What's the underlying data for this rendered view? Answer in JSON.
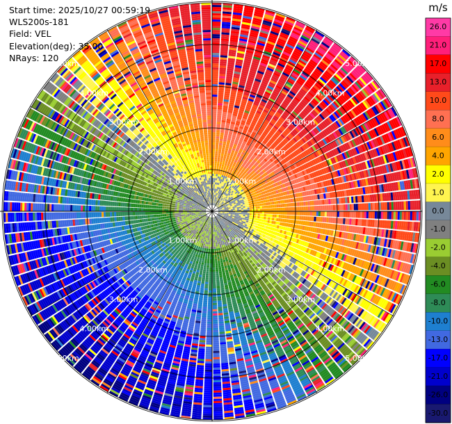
{
  "header": {
    "start_time": "Start time: 2025/10/27 00:59:19",
    "instrument": "WLS200s-181",
    "field": "Field: VEL",
    "elevation": "Elevation(deg): 35.00",
    "nrays": "NRays: 120"
  },
  "colorbar": {
    "unit": "m/s",
    "bins": [
      {
        "label": "26.0",
        "color": "#ff3aa6"
      },
      {
        "label": "21.0",
        "color": "#ff1f7a"
      },
      {
        "label": "17.0",
        "color": "#ff0000"
      },
      {
        "label": "13.0",
        "color": "#e8202a"
      },
      {
        "label": "10.0",
        "color": "#ff4a1a"
      },
      {
        "label": "8.0",
        "color": "#ff7052"
      },
      {
        "label": "6.0",
        "color": "#ff8c1a"
      },
      {
        "label": "4.0",
        "color": "#ffa500"
      },
      {
        "label": "2.0",
        "color": "#ffff00"
      },
      {
        "label": "1.0",
        "color": "#fff44f"
      },
      {
        "label": "0.0",
        "color": "#778899"
      },
      {
        "label": "-1.0",
        "color": "#808080"
      },
      {
        "label": "-2.0",
        "color": "#9acd32"
      },
      {
        "label": "-4.0",
        "color": "#6b8e23"
      },
      {
        "label": "-6.0",
        "color": "#228b22"
      },
      {
        "label": "-8.0",
        "color": "#2e8b57"
      },
      {
        "label": "-10.0",
        "color": "#1e7fd0"
      },
      {
        "label": "-13.0",
        "color": "#4169e1"
      },
      {
        "label": "-17.0",
        "color": "#0000ff"
      },
      {
        "label": "-21.0",
        "color": "#0000cd"
      },
      {
        "label": "-26.0",
        "color": "#000080"
      },
      {
        "label": "-30.0",
        "color": "#191970"
      }
    ]
  },
  "chart_data": {
    "type": "heatmap",
    "projection": "polar PPI",
    "field": "VEL",
    "units": "m/s",
    "nrays": 120,
    "range_rings_km": [
      1,
      2,
      3,
      4,
      5
    ],
    "ring_labels": [
      "1.00km",
      "2.00km",
      "3.00km",
      "4.00km",
      "5.00km"
    ],
    "spokes_deg": [
      0,
      30,
      60,
      90,
      120,
      150,
      180,
      210,
      240,
      270,
      300,
      330
    ],
    "vlim": [
      -30,
      26
    ],
    "pattern": "positive velocities (orange/red) toward north and east, negative (green/blue) toward south and west; near-zero grey core"
  }
}
